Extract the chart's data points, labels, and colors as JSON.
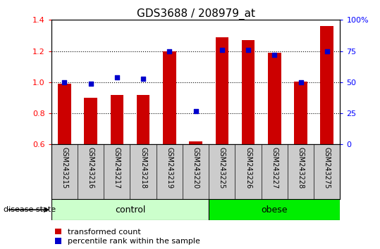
{
  "title": "GDS3688 / 208979_at",
  "samples": [
    "GSM243215",
    "GSM243216",
    "GSM243217",
    "GSM243218",
    "GSM243219",
    "GSM243220",
    "GSM243225",
    "GSM243226",
    "GSM243227",
    "GSM243228",
    "GSM243275"
  ],
  "transformed_count": [
    0.99,
    0.9,
    0.92,
    0.92,
    1.2,
    0.62,
    1.29,
    1.27,
    1.19,
    1.005,
    1.36
  ],
  "percentile_rank": [
    0.5,
    0.49,
    0.54,
    0.53,
    0.75,
    0.265,
    0.76,
    0.76,
    0.72,
    0.5,
    0.75
  ],
  "control_count": 6,
  "obese_count": 5,
  "ylim": [
    0.6,
    1.4
  ],
  "yticks_left": [
    0.6,
    0.8,
    1.0,
    1.2,
    1.4
  ],
  "ytick_labels_left": [
    "0.6",
    "0.8",
    "1.0",
    "1.2",
    "1.4"
  ],
  "ytick_labels_right": [
    "0",
    "25",
    "50",
    "75",
    "100%"
  ],
  "bar_color": "#cc0000",
  "dot_color": "#0000cc",
  "bar_width": 0.5,
  "grid_values": [
    0.8,
    1.0,
    1.2
  ],
  "legend_items": [
    {
      "label": "transformed count",
      "color": "#cc0000"
    },
    {
      "label": "percentile rank within the sample",
      "color": "#0000cc"
    }
  ],
  "background_color": "#ffffff",
  "tick_area_color": "#cccccc",
  "control_color": "#ccffcc",
  "obese_color": "#00ee00",
  "disease_state_label": "disease state",
  "title_fontsize": 11,
  "axis_fontsize": 8,
  "label_fontsize": 7,
  "legend_fontsize": 8,
  "group_fontsize": 9
}
